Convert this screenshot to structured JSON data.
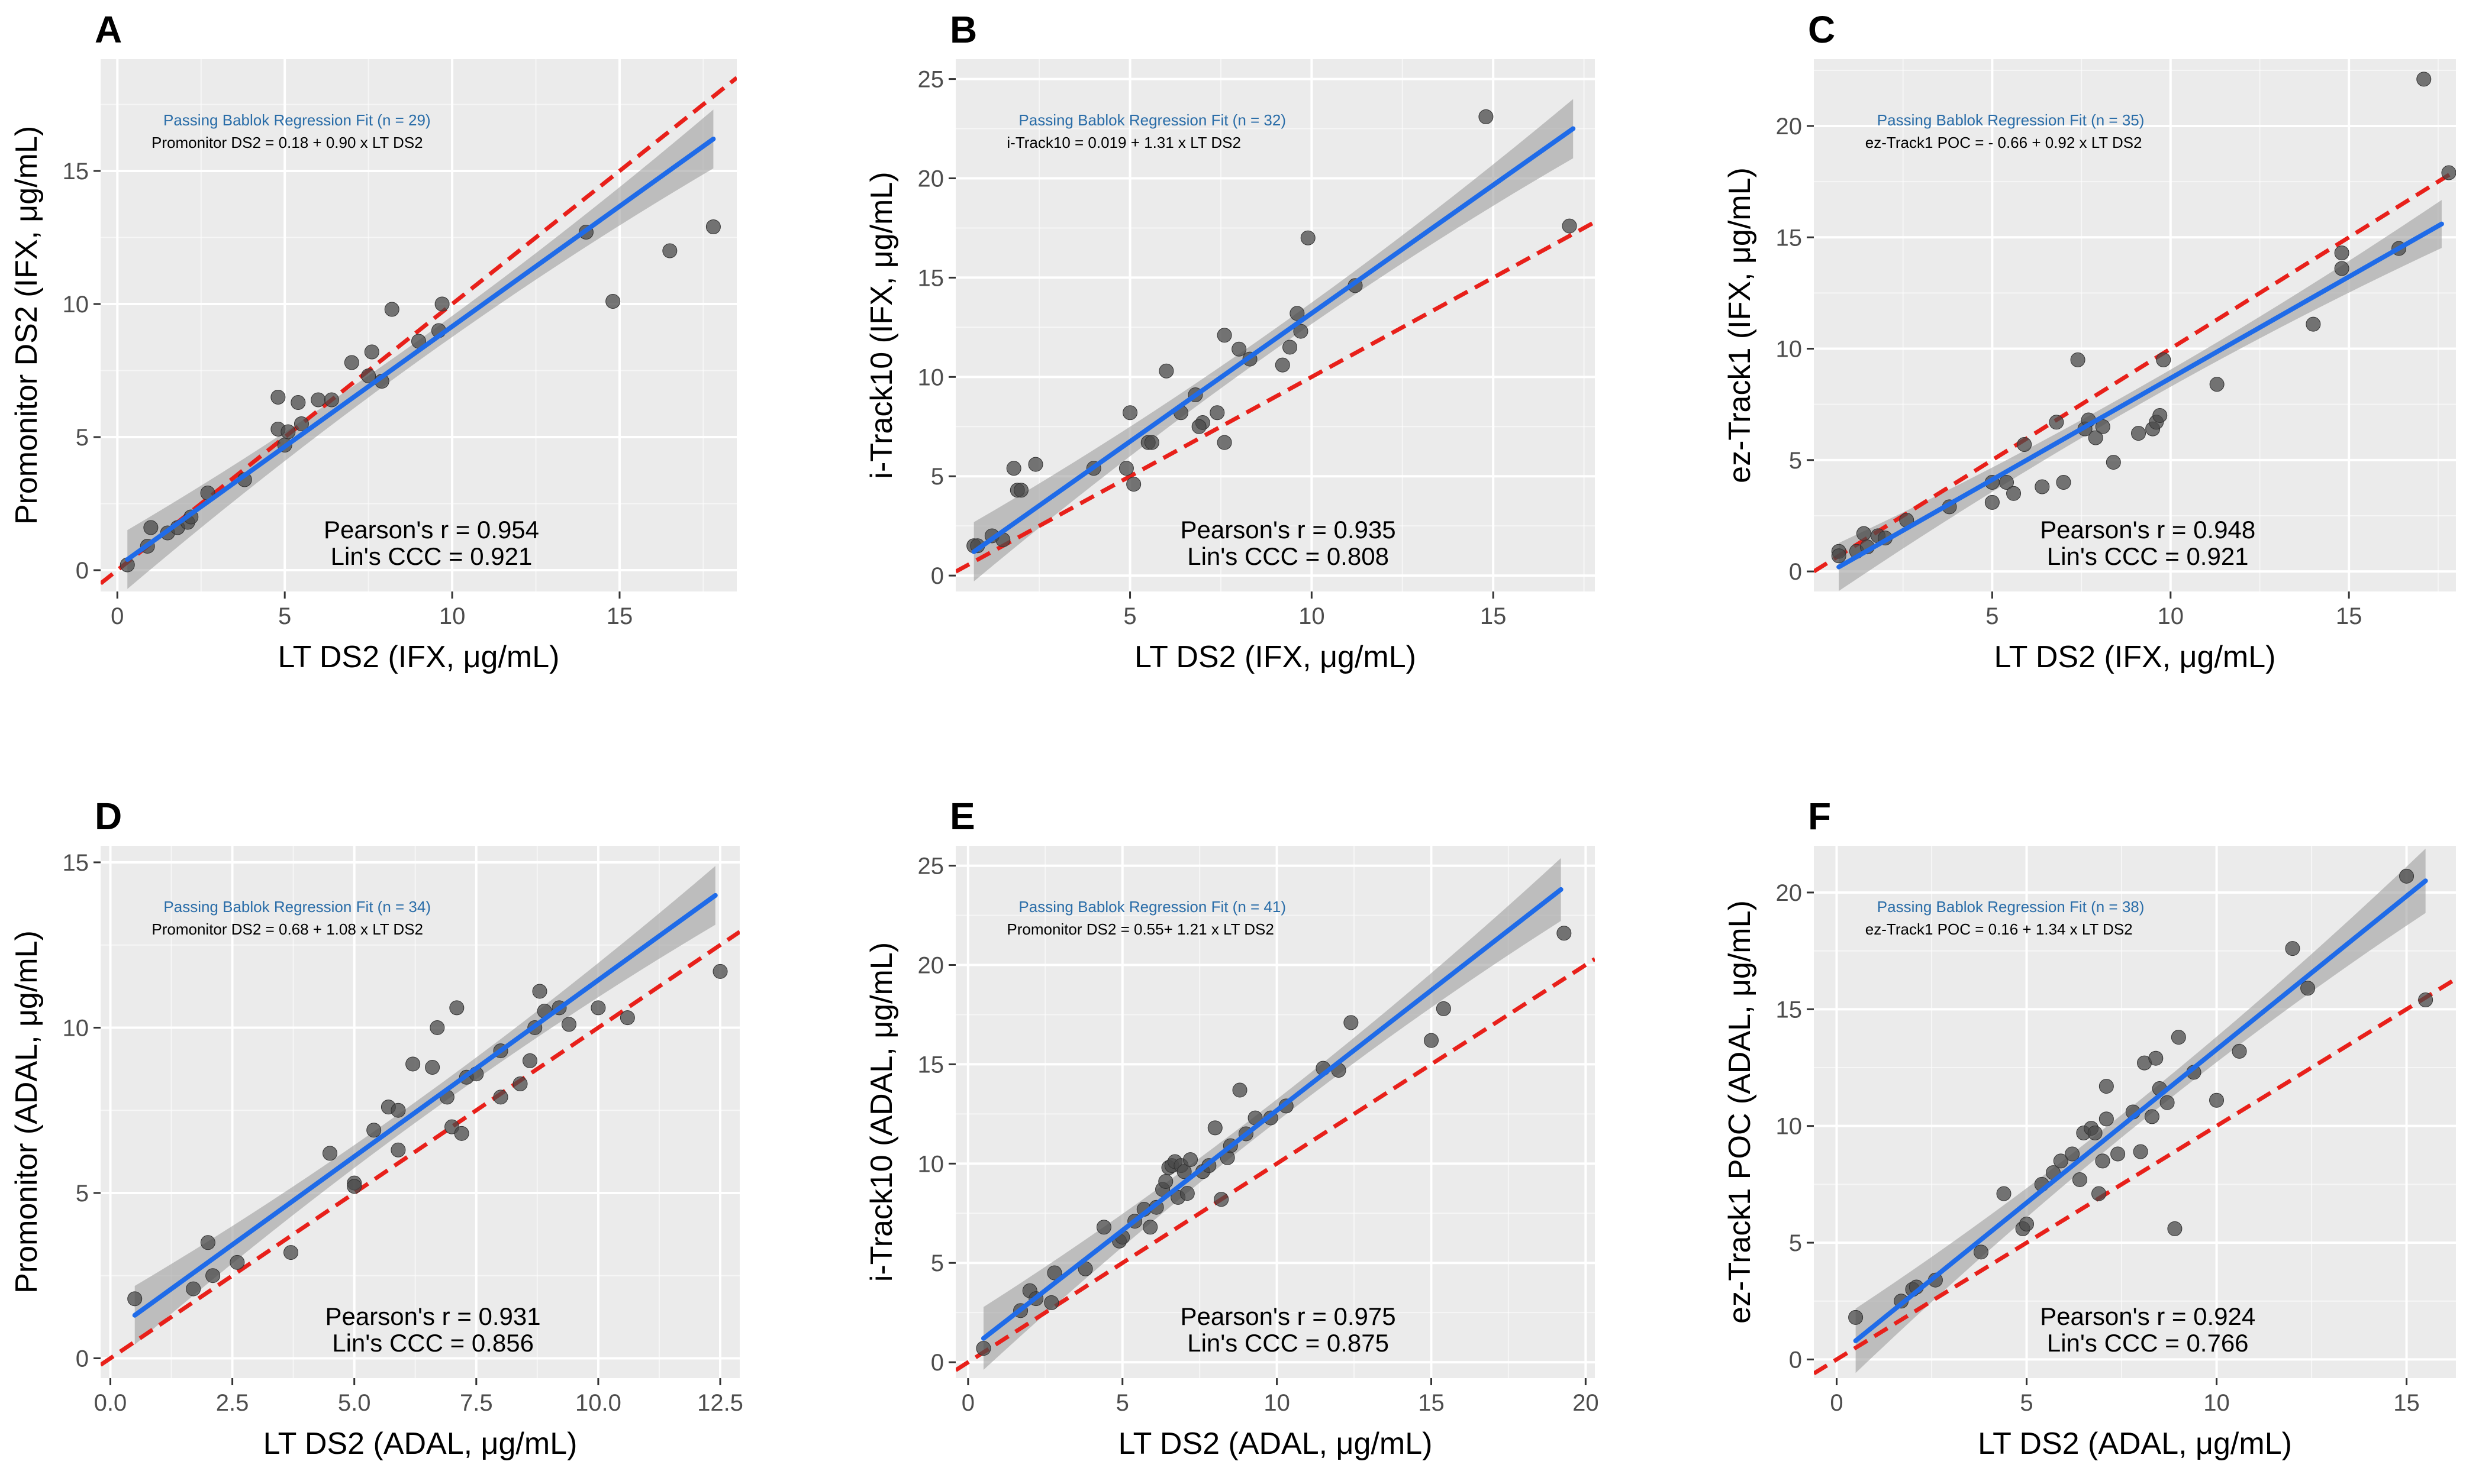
{
  "colors": {
    "panel_bg": "#ebebeb",
    "grid_major": "#ffffff",
    "point": "#4a4a4a",
    "fit_line": "#1f6be8",
    "ci_band": "#9e9e9e",
    "identity_line": "#e8201a",
    "reg_title": "#2a6da8"
  },
  "chart_data": [
    {
      "panel": "A",
      "type": "scatter",
      "xlabel": "LT DS2 (IFX, μg/mL)",
      "ylabel": "Promonitor DS2 (IFX, μg/mL)",
      "xlim": [
        -0.5,
        18.5
      ],
      "ylim": [
        -0.8,
        19.2
      ],
      "xticks": [
        0,
        5,
        10,
        15
      ],
      "yticks": [
        0,
        5,
        10,
        15
      ],
      "reg_title": "Passing Bablok Regression Fit (n = 29)",
      "reg_eq": "Promonitor DS2 = 0.18 + 0.90 x LT DS2",
      "pearson": "Pearson's r = 0.954",
      "ccc": "Lin's CCC = 0.921",
      "fit": {
        "x": [
          0.3,
          17.8
        ],
        "y": [
          0.4,
          16.2
        ],
        "ci": 0.14
      },
      "points": [
        [
          0.3,
          0.2
        ],
        [
          0.9,
          0.9
        ],
        [
          1.0,
          1.6
        ],
        [
          1.5,
          1.4
        ],
        [
          1.8,
          1.6
        ],
        [
          2.1,
          1.8
        ],
        [
          2.2,
          2.0
        ],
        [
          2.7,
          2.9
        ],
        [
          3.8,
          3.4
        ],
        [
          5.0,
          4.7
        ],
        [
          4.8,
          5.3
        ],
        [
          4.8,
          6.5
        ],
        [
          5.4,
          6.3
        ],
        [
          5.5,
          5.5
        ],
        [
          6.0,
          6.4
        ],
        [
          6.4,
          6.4
        ],
        [
          7.0,
          7.8
        ],
        [
          7.5,
          7.3
        ],
        [
          7.6,
          8.2
        ],
        [
          7.9,
          7.1
        ],
        [
          8.2,
          9.8
        ],
        [
          9.0,
          8.6
        ],
        [
          9.6,
          9.0
        ],
        [
          9.7,
          10.0
        ],
        [
          14.0,
          12.7
        ],
        [
          14.8,
          10.1
        ],
        [
          16.5,
          12.0
        ],
        [
          17.8,
          12.9
        ],
        [
          5.1,
          5.2
        ]
      ]
    },
    {
      "panel": "B",
      "type": "scatter",
      "xlabel": "LT DS2 (IFX, μg/mL)",
      "ylabel": "i-Track10 (IFX, μg/mL)",
      "xlim": [
        0.2,
        17.8
      ],
      "ylim": [
        -0.8,
        26.0
      ],
      "xticks": [
        5,
        10,
        15
      ],
      "yticks": [
        0,
        5,
        10,
        15,
        20,
        25
      ],
      "reg_title": "Passing Bablok Regression Fit (n = 32)",
      "reg_eq": "i-Track10 = 0.019 + 1.31 x LT DS2",
      "pearson": "Pearson's r = 0.935",
      "ccc": "Lin's CCC = 0.808",
      "fit": {
        "x": [
          0.7,
          17.2
        ],
        "y": [
          1.2,
          22.5
        ],
        "ci": 0.14
      },
      "points": [
        [
          0.7,
          1.5
        ],
        [
          0.8,
          1.5
        ],
        [
          1.2,
          2.0
        ],
        [
          1.5,
          1.8
        ],
        [
          1.8,
          5.4
        ],
        [
          1.9,
          4.3
        ],
        [
          2.4,
          5.6
        ],
        [
          4.0,
          5.4
        ],
        [
          4.9,
          5.4
        ],
        [
          5.1,
          4.6
        ],
        [
          5.0,
          8.2
        ],
        [
          5.5,
          6.7
        ],
        [
          5.6,
          6.7
        ],
        [
          6.0,
          10.3
        ],
        [
          6.4,
          8.2
        ],
        [
          6.8,
          9.1
        ],
        [
          7.0,
          7.7
        ],
        [
          7.4,
          8.2
        ],
        [
          7.6,
          6.7
        ],
        [
          7.6,
          12.1
        ],
        [
          8.0,
          11.4
        ],
        [
          8.3,
          10.9
        ],
        [
          9.2,
          10.6
        ],
        [
          9.4,
          11.5
        ],
        [
          9.6,
          13.2
        ],
        [
          9.7,
          12.3
        ],
        [
          9.9,
          17.0
        ],
        [
          11.2,
          14.6
        ],
        [
          14.8,
          23.1
        ],
        [
          17.1,
          17.6
        ],
        [
          2.0,
          4.3
        ],
        [
          6.9,
          7.5
        ]
      ]
    },
    {
      "panel": "C",
      "type": "scatter",
      "xlabel": "LT DS2 (IFX, μg/mL)",
      "ylabel": "ez-Track1 (IFX, μg/mL)",
      "xlim": [
        0.0,
        18.0
      ],
      "ylim": [
        -0.9,
        23.0
      ],
      "xticks": [
        5,
        10,
        15
      ],
      "yticks": [
        0,
        5,
        10,
        15,
        20
      ],
      "reg_title": "Passing Bablok Regression Fit (n = 35)",
      "reg_eq": "ez-Track1 POC = - 0.66 + 0.92 x LT DS2",
      "pearson": "Pearson's r = 0.948",
      "ccc": "Lin's CCC = 0.921",
      "fit": {
        "x": [
          0.7,
          17.6
        ],
        "y": [
          0.2,
          15.6
        ],
        "ci": 0.14
      },
      "points": [
        [
          0.7,
          0.9
        ],
        [
          0.7,
          0.7
        ],
        [
          1.2,
          0.9
        ],
        [
          1.4,
          1.7
        ],
        [
          1.5,
          1.1
        ],
        [
          1.8,
          1.6
        ],
        [
          2.0,
          1.5
        ],
        [
          2.6,
          2.3
        ],
        [
          3.8,
          2.9
        ],
        [
          5.0,
          3.1
        ],
        [
          5.0,
          4.0
        ],
        [
          5.4,
          4.0
        ],
        [
          5.6,
          3.5
        ],
        [
          5.9,
          5.7
        ],
        [
          6.4,
          3.8
        ],
        [
          6.8,
          6.7
        ],
        [
          7.0,
          4.0
        ],
        [
          7.4,
          9.5
        ],
        [
          7.6,
          6.4
        ],
        [
          7.7,
          6.8
        ],
        [
          7.9,
          6.0
        ],
        [
          8.1,
          6.5
        ],
        [
          8.4,
          4.9
        ],
        [
          9.1,
          6.2
        ],
        [
          9.5,
          6.4
        ],
        [
          9.6,
          6.7
        ],
        [
          9.7,
          7.0
        ],
        [
          9.8,
          9.5
        ],
        [
          11.3,
          8.4
        ],
        [
          14.0,
          11.1
        ],
        [
          14.8,
          13.6
        ],
        [
          14.8,
          14.3
        ],
        [
          16.4,
          14.5
        ],
        [
          17.1,
          22.1
        ],
        [
          17.8,
          17.9
        ]
      ]
    },
    {
      "panel": "D",
      "type": "scatter",
      "xlabel": "LT DS2 (ADAL, μg/mL)",
      "ylabel": "Promonitor (ADAL, μg/mL)",
      "xlim": [
        -0.2,
        12.9
      ],
      "ylim": [
        -0.6,
        15.5
      ],
      "xticks": [
        0.0,
        2.5,
        5.0,
        7.5,
        10.0,
        12.5
      ],
      "yticks": [
        0,
        5,
        10,
        15
      ],
      "reg_title": "Passing Bablok Regression Fit (n = 34)",
      "reg_eq": "Promonitor DS2 = 0.68 + 1.08 x LT DS2",
      "pearson": "Pearson's r = 0.931",
      "ccc": "Lin's CCC = 0.856",
      "fit": {
        "x": [
          0.5,
          12.4
        ],
        "y": [
          1.3,
          14.0
        ],
        "ci": 0.14
      },
      "points": [
        [
          0.5,
          1.8
        ],
        [
          1.7,
          2.1
        ],
        [
          2.0,
          3.5
        ],
        [
          2.1,
          2.5
        ],
        [
          2.6,
          2.9
        ],
        [
          3.7,
          3.2
        ],
        [
          4.5,
          6.2
        ],
        [
          5.0,
          5.3
        ],
        [
          5.0,
          5.2
        ],
        [
          5.4,
          6.9
        ],
        [
          5.7,
          7.6
        ],
        [
          5.9,
          6.3
        ],
        [
          5.9,
          7.5
        ],
        [
          6.2,
          8.9
        ],
        [
          6.6,
          8.8
        ],
        [
          6.7,
          10.0
        ],
        [
          6.9,
          7.9
        ],
        [
          7.0,
          7.0
        ],
        [
          7.1,
          10.6
        ],
        [
          7.2,
          6.8
        ],
        [
          7.3,
          8.5
        ],
        [
          7.5,
          8.6
        ],
        [
          8.0,
          7.9
        ],
        [
          8.0,
          9.3
        ],
        [
          8.4,
          8.3
        ],
        [
          8.6,
          9.0
        ],
        [
          8.7,
          10.0
        ],
        [
          8.8,
          11.1
        ],
        [
          8.9,
          10.5
        ],
        [
          9.2,
          10.6
        ],
        [
          9.4,
          10.1
        ],
        [
          10.0,
          10.6
        ],
        [
          10.6,
          10.3
        ],
        [
          12.5,
          11.7
        ]
      ]
    },
    {
      "panel": "E",
      "type": "scatter",
      "xlabel": "LT DS2 (ADAL, μg/mL)",
      "ylabel": "i-Track10 (ADAL, μg/mL)",
      "xlim": [
        -0.4,
        20.3
      ],
      "ylim": [
        -0.8,
        26.0
      ],
      "xticks": [
        0,
        5,
        10,
        15,
        20
      ],
      "yticks": [
        0,
        5,
        10,
        15,
        20,
        25
      ],
      "reg_title": "Passing Bablok Regression Fit (n = 41)",
      "reg_eq": "Promonitor DS2 = 0.55+ 1.21 x LT DS2",
      "pearson": "Pearson's r = 0.975",
      "ccc": "Lin's CCC = 0.875",
      "fit": {
        "x": [
          0.5,
          19.2
        ],
        "y": [
          1.2,
          23.8
        ],
        "ci": 0.14
      },
      "points": [
        [
          0.5,
          0.7
        ],
        [
          1.7,
          2.6
        ],
        [
          2.0,
          3.6
        ],
        [
          2.2,
          3.2
        ],
        [
          2.7,
          3.0
        ],
        [
          2.8,
          4.5
        ],
        [
          3.8,
          4.7
        ],
        [
          4.4,
          6.8
        ],
        [
          4.9,
          6.1
        ],
        [
          5.0,
          6.3
        ],
        [
          5.4,
          7.1
        ],
        [
          5.7,
          7.7
        ],
        [
          5.9,
          6.8
        ],
        [
          6.1,
          7.8
        ],
        [
          6.3,
          8.7
        ],
        [
          6.4,
          9.1
        ],
        [
          6.5,
          9.8
        ],
        [
          6.6,
          9.9
        ],
        [
          6.7,
          10.1
        ],
        [
          6.8,
          8.3
        ],
        [
          6.9,
          9.9
        ],
        [
          7.0,
          9.6
        ],
        [
          7.1,
          8.5
        ],
        [
          7.2,
          10.2
        ],
        [
          7.6,
          9.6
        ],
        [
          7.8,
          9.9
        ],
        [
          8.0,
          11.8
        ],
        [
          8.2,
          8.2
        ],
        [
          8.4,
          10.3
        ],
        [
          8.5,
          10.9
        ],
        [
          8.8,
          13.7
        ],
        [
          9.0,
          11.5
        ],
        [
          9.3,
          12.3
        ],
        [
          9.8,
          12.3
        ],
        [
          10.3,
          12.9
        ],
        [
          11.5,
          14.8
        ],
        [
          12.0,
          14.7
        ],
        [
          12.4,
          17.1
        ],
        [
          15.0,
          16.2
        ],
        [
          15.4,
          17.8
        ],
        [
          19.3,
          21.6
        ]
      ]
    },
    {
      "panel": "F",
      "type": "scatter",
      "xlabel": "LT DS2 (ADAL, μg/mL)",
      "ylabel": "ez-Track1 POC (ADAL, μg/mL)",
      "xlim": [
        -0.6,
        16.3
      ],
      "ylim": [
        -0.8,
        22.0
      ],
      "xticks": [
        0,
        5,
        10,
        15
      ],
      "yticks": [
        0,
        5,
        10,
        15,
        20
      ],
      "reg_title": "Passing Bablok Regression Fit (n = 38)",
      "reg_eq": "ez-Track1 POC = 0.16 + 1.34 x LT DS2",
      "pearson": "Pearson's r = 0.924",
      "ccc": "Lin's CCC = 0.766",
      "fit": {
        "x": [
          0.5,
          15.5
        ],
        "y": [
          0.8,
          20.5
        ],
        "ci": 0.14
      },
      "points": [
        [
          0.5,
          1.8
        ],
        [
          1.7,
          2.5
        ],
        [
          2.0,
          3.0
        ],
        [
          2.1,
          3.1
        ],
        [
          2.6,
          3.4
        ],
        [
          3.8,
          4.6
        ],
        [
          4.4,
          7.1
        ],
        [
          4.9,
          5.6
        ],
        [
          5.0,
          5.8
        ],
        [
          5.4,
          7.5
        ],
        [
          5.7,
          8.0
        ],
        [
          5.9,
          8.5
        ],
        [
          6.2,
          8.8
        ],
        [
          6.4,
          7.7
        ],
        [
          6.5,
          9.7
        ],
        [
          6.7,
          9.9
        ],
        [
          6.8,
          9.7
        ],
        [
          6.9,
          7.1
        ],
        [
          7.0,
          8.5
        ],
        [
          7.1,
          10.3
        ],
        [
          7.1,
          11.7
        ],
        [
          7.4,
          8.8
        ],
        [
          7.8,
          10.6
        ],
        [
          8.0,
          8.9
        ],
        [
          8.1,
          12.7
        ],
        [
          8.3,
          10.4
        ],
        [
          8.4,
          12.9
        ],
        [
          8.5,
          11.6
        ],
        [
          8.7,
          11.0
        ],
        [
          8.9,
          5.6
        ],
        [
          9.0,
          13.8
        ],
        [
          9.4,
          12.3
        ],
        [
          10.0,
          11.1
        ],
        [
          10.6,
          13.2
        ],
        [
          12.0,
          17.6
        ],
        [
          12.4,
          15.9
        ],
        [
          15.0,
          20.7
        ],
        [
          15.5,
          15.4
        ]
      ]
    }
  ]
}
